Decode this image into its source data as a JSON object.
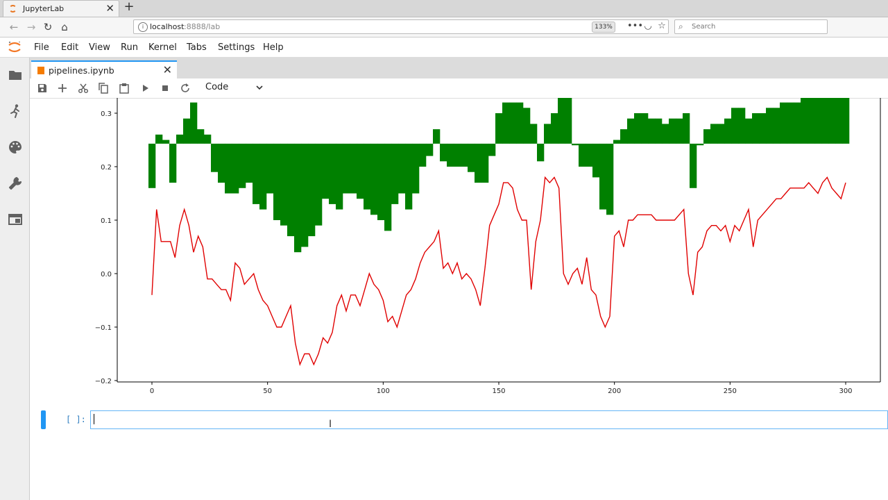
{
  "browser": {
    "tab_title": "JupyterLab",
    "new_tab": "+",
    "close": "✕",
    "url_host": "localhost",
    "url_port": ":8888/lab",
    "zoom": "133%",
    "search_placeholder": "Search"
  },
  "menu": [
    "File",
    "Edit",
    "View",
    "Run",
    "Kernel",
    "Tabs",
    "Settings",
    "Help"
  ],
  "notebook": {
    "tab_name": "pipelines.ipynb",
    "tab_close": "✕",
    "cell_type": "Code",
    "prompt": "[ ]:"
  },
  "chart_data": {
    "type": "bar",
    "xlim": [
      -15,
      315
    ],
    "ylim": [
      -0.2,
      0.33
    ],
    "x_ticks": [
      0,
      50,
      100,
      150,
      200,
      250,
      300
    ],
    "y_ticks": [
      -0.2,
      -0.1,
      0.0,
      0.1,
      0.2,
      0.3
    ],
    "bar_baseline": 0.243,
    "grid": false,
    "series": [
      {
        "type": "bar",
        "color": "#008000",
        "x": [
          0,
          3,
          6,
          9,
          12,
          15,
          18,
          21,
          24,
          27,
          30,
          33,
          36,
          39,
          42,
          45,
          48,
          51,
          54,
          57,
          60,
          63,
          66,
          69,
          72,
          75,
          78,
          81,
          84,
          87,
          90,
          93,
          96,
          99,
          102,
          105,
          108,
          111,
          114,
          117,
          120,
          123,
          126,
          129,
          132,
          135,
          138,
          141,
          144,
          147,
          150,
          153,
          156,
          159,
          162,
          165,
          168,
          171,
          174,
          177,
          180,
          183,
          186,
          189,
          192,
          195,
          198,
          201,
          204,
          207,
          210,
          213,
          216,
          219,
          222,
          225,
          228,
          231,
          234,
          237,
          240,
          243,
          246,
          249,
          252,
          255,
          258,
          261,
          264,
          267,
          270,
          273,
          276,
          279,
          282,
          285,
          288,
          291,
          294,
          297,
          300
        ],
        "values": [
          0.16,
          0.26,
          0.25,
          0.17,
          0.26,
          0.29,
          0.32,
          0.27,
          0.26,
          0.19,
          0.17,
          0.15,
          0.15,
          0.16,
          0.17,
          0.13,
          0.12,
          0.15,
          0.1,
          0.09,
          0.07,
          0.04,
          0.05,
          0.07,
          0.09,
          0.14,
          0.13,
          0.12,
          0.15,
          0.15,
          0.14,
          0.12,
          0.11,
          0.1,
          0.08,
          0.13,
          0.15,
          0.12,
          0.15,
          0.2,
          0.22,
          0.27,
          0.21,
          0.2,
          0.2,
          0.2,
          0.19,
          0.17,
          0.17,
          0.22,
          0.3,
          0.32,
          0.32,
          0.32,
          0.31,
          0.28,
          0.21,
          0.28,
          0.3,
          0.33,
          0.33,
          0.24,
          0.2,
          0.2,
          0.18,
          0.12,
          0.11,
          0.25,
          0.27,
          0.29,
          0.3,
          0.3,
          0.29,
          0.29,
          0.28,
          0.29,
          0.29,
          0.3,
          0.16,
          0.24,
          0.27,
          0.28,
          0.28,
          0.29,
          0.31,
          0.31,
          0.29,
          0.3,
          0.3,
          0.31,
          0.31,
          0.32,
          0.32,
          0.32,
          0.33,
          0.33,
          0.33,
          0.33,
          0.33,
          0.33,
          0.33
        ]
      },
      {
        "type": "line",
        "color": "#e00000",
        "x": [
          0,
          2,
          4,
          6,
          8,
          10,
          12,
          14,
          16,
          18,
          20,
          22,
          24,
          26,
          28,
          30,
          32,
          34,
          36,
          38,
          40,
          42,
          44,
          46,
          48,
          50,
          52,
          54,
          56,
          58,
          60,
          62,
          64,
          66,
          68,
          70,
          72,
          74,
          76,
          78,
          80,
          82,
          84,
          86,
          88,
          90,
          92,
          94,
          96,
          98,
          100,
          102,
          104,
          106,
          108,
          110,
          112,
          114,
          116,
          118,
          120,
          122,
          124,
          126,
          128,
          130,
          132,
          134,
          136,
          138,
          140,
          142,
          144,
          146,
          148,
          150,
          152,
          154,
          156,
          158,
          160,
          162,
          164,
          166,
          168,
          170,
          172,
          174,
          176,
          178,
          180,
          182,
          184,
          186,
          188,
          190,
          192,
          194,
          196,
          198,
          200,
          202,
          204,
          206,
          208,
          210,
          212,
          214,
          216,
          218,
          220,
          222,
          224,
          226,
          228,
          230,
          232,
          234,
          236,
          238,
          240,
          242,
          244,
          246,
          248,
          250,
          252,
          254,
          256,
          258,
          260,
          262,
          264,
          266,
          268,
          270,
          272,
          274,
          276,
          278,
          280,
          282,
          284,
          286,
          288,
          290,
          292,
          294,
          296,
          298,
          300
        ],
        "values": [
          -0.04,
          0.12,
          0.06,
          0.06,
          0.06,
          0.03,
          0.09,
          0.12,
          0.09,
          0.04,
          0.07,
          0.05,
          -0.01,
          -0.01,
          -0.02,
          -0.03,
          -0.03,
          -0.05,
          0.02,
          0.01,
          -0.02,
          -0.01,
          0.0,
          -0.03,
          -0.05,
          -0.06,
          -0.08,
          -0.1,
          -0.1,
          -0.08,
          -0.06,
          -0.13,
          -0.17,
          -0.15,
          -0.15,
          -0.17,
          -0.15,
          -0.12,
          -0.13,
          -0.11,
          -0.06,
          -0.04,
          -0.07,
          -0.04,
          -0.04,
          -0.06,
          -0.03,
          0.0,
          -0.02,
          -0.03,
          -0.05,
          -0.09,
          -0.08,
          -0.1,
          -0.07,
          -0.04,
          -0.03,
          -0.01,
          0.02,
          0.04,
          0.05,
          0.06,
          0.08,
          0.01,
          0.02,
          0.0,
          0.02,
          -0.01,
          0.0,
          -0.01,
          -0.03,
          -0.06,
          0.01,
          0.09,
          0.11,
          0.13,
          0.17,
          0.17,
          0.16,
          0.12,
          0.1,
          0.1,
          -0.03,
          0.06,
          0.1,
          0.18,
          0.17,
          0.18,
          0.16,
          0.0,
          -0.02,
          0.0,
          0.01,
          -0.02,
          0.03,
          -0.03,
          -0.04,
          -0.08,
          -0.1,
          -0.08,
          0.07,
          0.08,
          0.05,
          0.1,
          0.1,
          0.11,
          0.11,
          0.11,
          0.11,
          0.1,
          0.1,
          0.1,
          0.1,
          0.1,
          0.11,
          0.12,
          0.0,
          -0.04,
          0.04,
          0.05,
          0.08,
          0.09,
          0.09,
          0.08,
          0.09,
          0.06,
          0.09,
          0.08,
          0.1,
          0.12,
          0.05,
          0.1,
          0.11,
          0.12,
          0.13,
          0.14,
          0.14,
          0.15,
          0.16,
          0.16,
          0.16,
          0.16,
          0.17,
          0.16,
          0.15,
          0.17,
          0.18,
          0.16,
          0.15,
          0.14,
          0.17
        ]
      }
    ]
  }
}
